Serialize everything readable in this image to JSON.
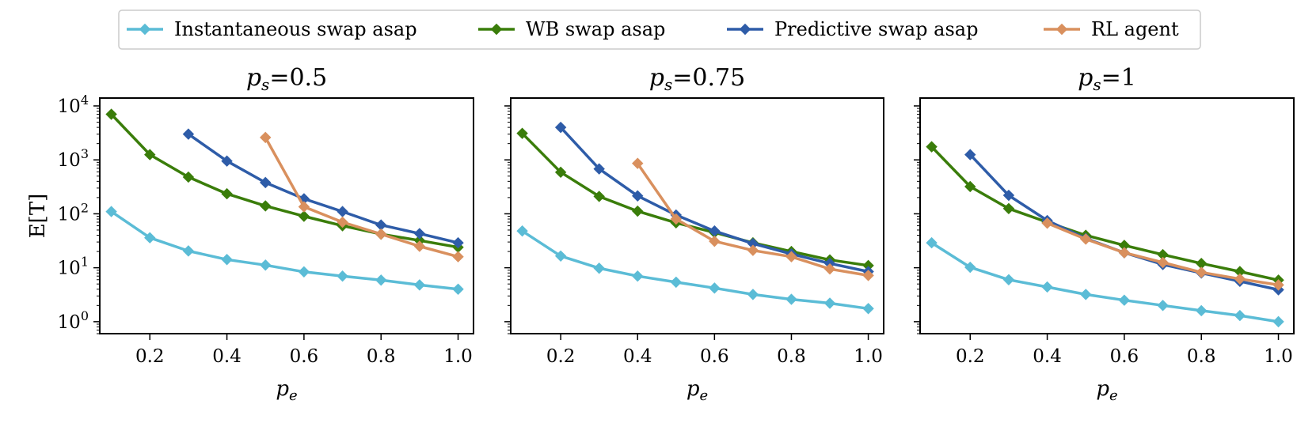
{
  "legend": [
    {
      "label": "Instantaneous swap asap",
      "color": "#5bbcd6"
    },
    {
      "label": "WB swap asap",
      "color": "#3a7d0a"
    },
    {
      "label": "Predictive swap asap",
      "color": "#2e5ca8"
    },
    {
      "label": "RL agent",
      "color": "#d9905e"
    }
  ],
  "y_axis_label": "E[T]",
  "x_axis_label_sub": "e",
  "y_tick_labels": [
    "10",
    "10",
    "10",
    "10",
    "10"
  ],
  "y_tick_exponents": [
    "0",
    "1",
    "2",
    "3",
    "4"
  ],
  "x_tick_labels": [
    "0.2",
    "0.4",
    "0.6",
    "0.8",
    "1.0"
  ],
  "chart_data": [
    {
      "type": "line",
      "title_value": "0.5",
      "title": "p_s=0.5",
      "xlabel": "p_e",
      "ylabel": "E[T]",
      "yscale": "log",
      "xlim": [
        0.07,
        1.04
      ],
      "ylim": [
        0.6,
        14000
      ],
      "series": [
        {
          "name": "Instantaneous swap asap",
          "x": [
            0.1,
            0.2,
            0.3,
            0.4,
            0.5,
            0.6,
            0.7,
            0.8,
            0.9,
            1.0
          ],
          "values": [
            110,
            36,
            20.5,
            14.2,
            11.2,
            8.4,
            7.0,
            5.9,
            4.8,
            4.0
          ]
        },
        {
          "name": "WB swap asap",
          "x": [
            0.1,
            0.2,
            0.3,
            0.4,
            0.5,
            0.6,
            0.7,
            0.8,
            0.9,
            1.0
          ],
          "values": [
            7000,
            1250,
            480,
            235,
            140,
            90,
            60,
            42,
            32,
            24
          ]
        },
        {
          "name": "Predictive swap asap",
          "x": [
            0.3,
            0.4,
            0.5,
            0.6,
            0.7,
            0.8,
            0.9,
            1.0
          ],
          "values": [
            3000,
            950,
            380,
            190,
            110,
            62,
            43,
            29
          ]
        },
        {
          "name": "RL agent",
          "x": [
            0.5,
            0.6,
            0.7,
            0.8,
            0.9,
            1.0
          ],
          "values": [
            2600,
            135,
            70,
            42,
            25,
            16
          ]
        }
      ]
    },
    {
      "type": "line",
      "title_value": "0.75",
      "title": "p_s=0.75",
      "xlabel": "p_e",
      "ylabel": "E[T]",
      "yscale": "log",
      "xlim": [
        0.07,
        1.04
      ],
      "ylim": [
        0.6,
        14000
      ],
      "series": [
        {
          "name": "Instantaneous swap asap",
          "x": [
            0.1,
            0.2,
            0.3,
            0.4,
            0.5,
            0.6,
            0.7,
            0.8,
            0.9,
            1.0
          ],
          "values": [
            48,
            16.5,
            9.8,
            7.0,
            5.4,
            4.2,
            3.2,
            2.6,
            2.2,
            1.75
          ]
        },
        {
          "name": "WB swap asap",
          "x": [
            0.1,
            0.2,
            0.3,
            0.4,
            0.5,
            0.6,
            0.7,
            0.8,
            0.9,
            1.0
          ],
          "values": [
            3100,
            590,
            210,
            112,
            68,
            45,
            29,
            20,
            14,
            11
          ]
        },
        {
          "name": "Predictive swap asap",
          "x": [
            0.2,
            0.3,
            0.4,
            0.5,
            0.6,
            0.7,
            0.8,
            0.9,
            1.0
          ],
          "values": [
            4000,
            680,
            215,
            95,
            48,
            28,
            18,
            12,
            8.5
          ]
        },
        {
          "name": "RL agent",
          "x": [
            0.4,
            0.5,
            0.6,
            0.7,
            0.8,
            0.9,
            1.0
          ],
          "values": [
            860,
            80,
            31,
            21,
            16,
            9.5,
            7.2
          ]
        }
      ]
    },
    {
      "type": "line",
      "title_value": "1",
      "title": "p_s=1",
      "xlabel": "p_e",
      "ylabel": "E[T]",
      "yscale": "log",
      "xlim": [
        0.07,
        1.04
      ],
      "ylim": [
        0.6,
        14000
      ],
      "series": [
        {
          "name": "Instantaneous swap asap",
          "x": [
            0.1,
            0.2,
            0.3,
            0.4,
            0.5,
            0.6,
            0.7,
            0.8,
            0.9,
            1.0
          ],
          "values": [
            29,
            10.2,
            6.0,
            4.4,
            3.2,
            2.5,
            2.0,
            1.6,
            1.3,
            1.0
          ]
        },
        {
          "name": "WB swap asap",
          "x": [
            0.1,
            0.2,
            0.3,
            0.4,
            0.5,
            0.6,
            0.7,
            0.8,
            0.9,
            1.0
          ],
          "values": [
            1750,
            320,
            125,
            70,
            40,
            26,
            17.5,
            12,
            8.5,
            5.9
          ]
        },
        {
          "name": "Predictive swap asap",
          "x": [
            0.2,
            0.3,
            0.4,
            0.5,
            0.6,
            0.7,
            0.8,
            0.9,
            1.0
          ],
          "values": [
            1250,
            220,
            75,
            35,
            19,
            11.5,
            8.0,
            5.6,
            3.9
          ]
        },
        {
          "name": "RL agent",
          "x": [
            0.4,
            0.5,
            0.6,
            0.7,
            0.8,
            0.9,
            1.0
          ],
          "values": [
            67,
            34,
            19,
            12.5,
            8.2,
            6.2,
            4.8
          ]
        }
      ]
    }
  ]
}
